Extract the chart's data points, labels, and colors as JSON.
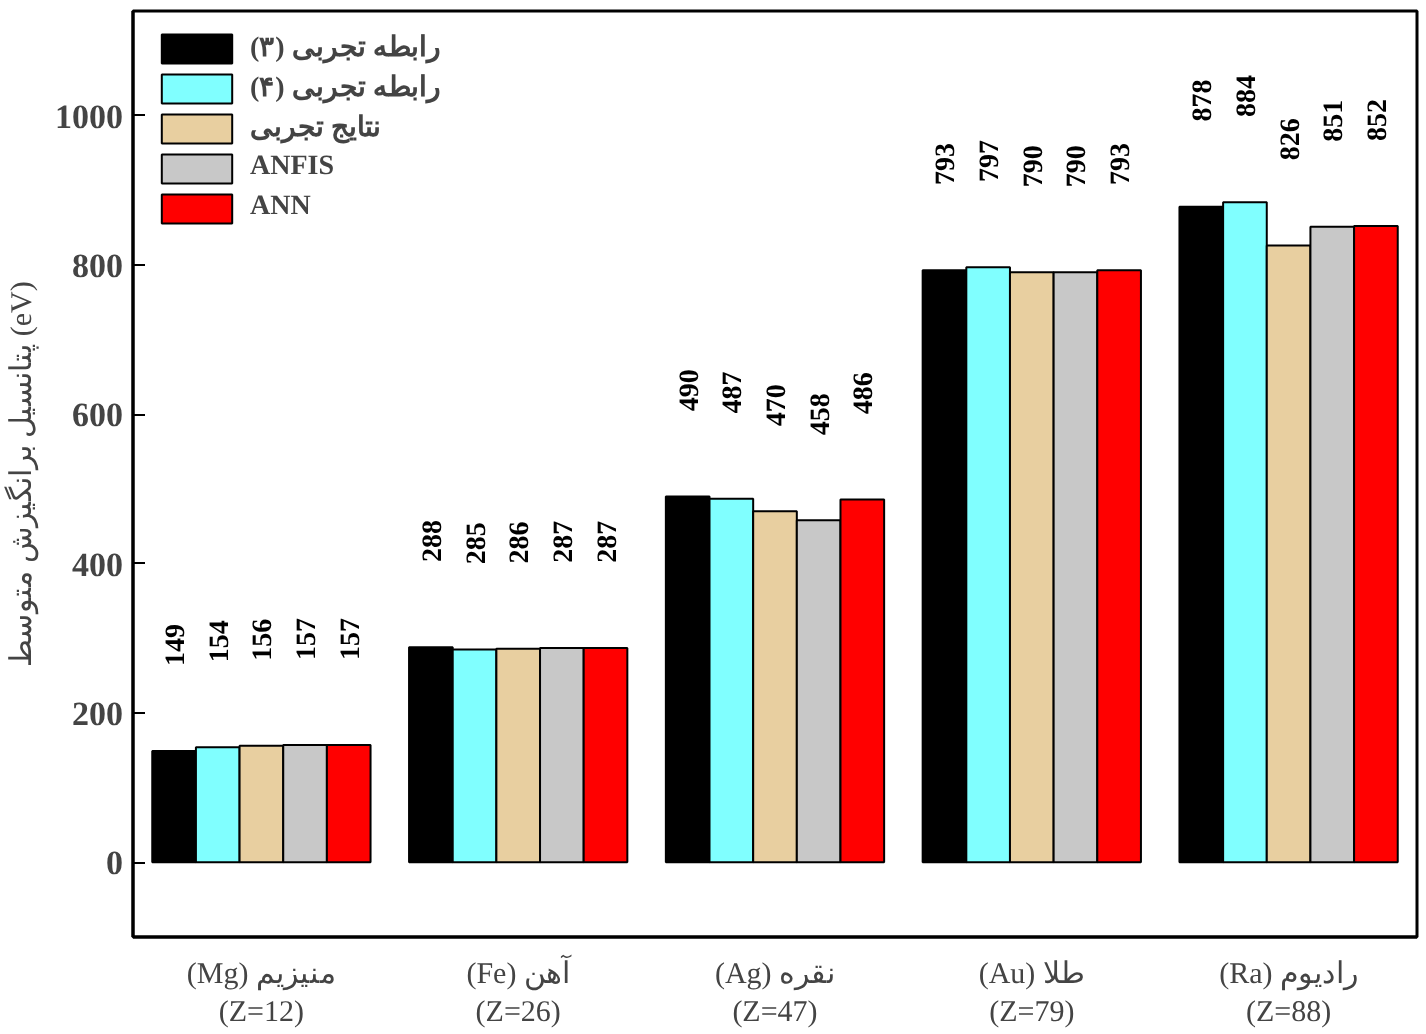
{
  "chart_data": {
    "type": "bar",
    "ylabel": "پتانسیل برانگیزش متوسط (eV)",
    "categories": [
      "(Mg) منیزیم\n(Z=12)",
      "(Fe) آهن\n(Z=26)",
      "(Ag) نقره\n(Z=47)",
      "(Au) طلا\n(Z=79)",
      "(Ra) رادیوم\n(Z=88)"
    ],
    "series": [
      {
        "name": "رابطه تجربی (۳)",
        "color": "#000000",
        "values": [
          149,
          288,
          490,
          793,
          878
        ]
      },
      {
        "name": "رابطه تجربی (۴)",
        "color": "#80ffff",
        "values": [
          154,
          285,
          487,
          797,
          884
        ]
      },
      {
        "name": "نتایج تجربی",
        "color": "#e8cfa0",
        "values": [
          156,
          286,
          470,
          790,
          826
        ]
      },
      {
        "name": "ANFIS",
        "color": "#c8c8c8",
        "values": [
          157,
          287,
          458,
          790,
          851
        ]
      },
      {
        "name": "ANN",
        "color": "#ff0000",
        "values": [
          157,
          287,
          486,
          793,
          852
        ]
      }
    ],
    "ylim": [
      -100,
      1140
    ],
    "yticks": [
      0,
      200,
      400,
      600,
      800,
      1000
    ],
    "data_labels": true,
    "legend": "top left",
    "grid": false
  }
}
